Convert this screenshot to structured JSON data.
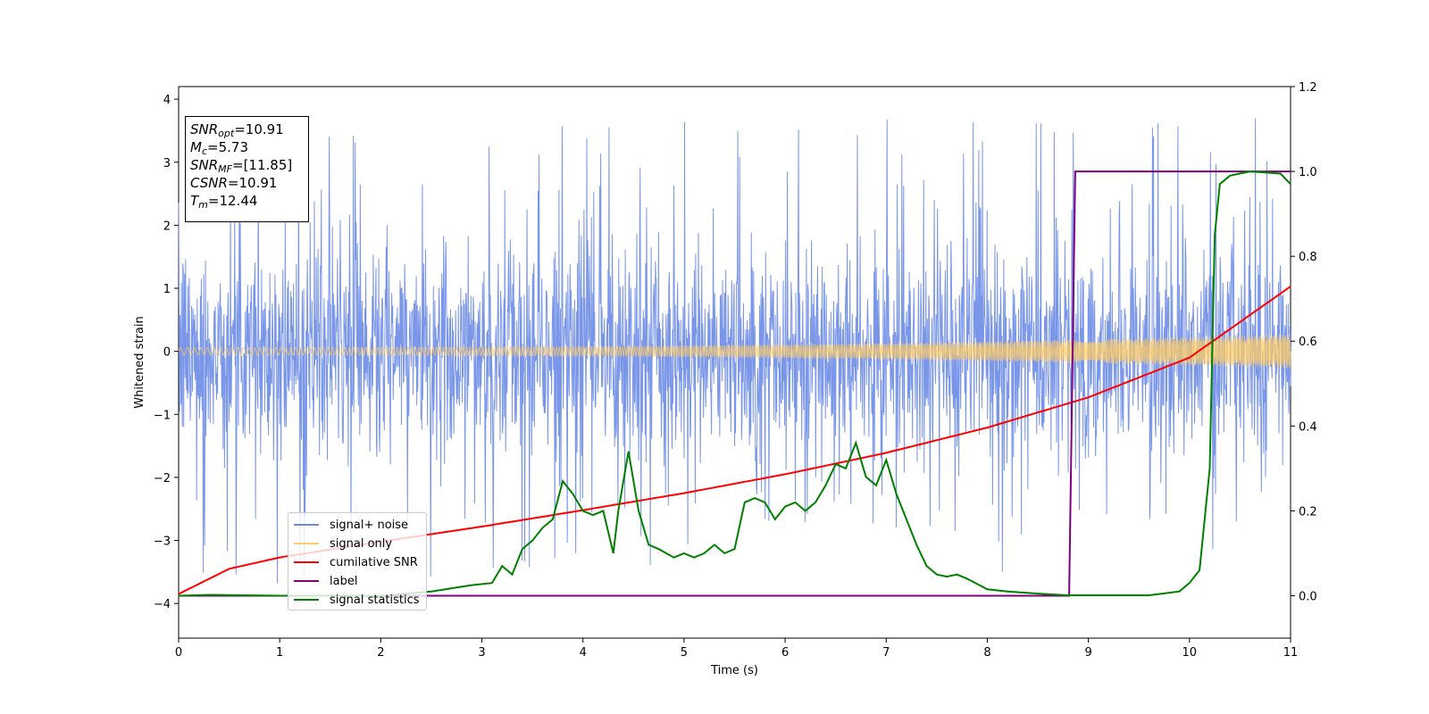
{
  "chart_data": {
    "type": "line",
    "xlabel": "Time (s)",
    "ylabel": "Whitened strain",
    "xlim": [
      0,
      11
    ],
    "ylim": [
      -4.55,
      4.2
    ],
    "y2lim": [
      -0.1,
      1.2
    ],
    "xticks": [
      "0",
      "1",
      "2",
      "3",
      "4",
      "5",
      "6",
      "7",
      "8",
      "9",
      "10",
      "11"
    ],
    "yticks": [
      "−4",
      "−3",
      "−2",
      "−1",
      "0",
      "1",
      "2",
      "3",
      "4"
    ],
    "y2ticks": [
      "0.0",
      "0.2",
      "0.4",
      "0.6",
      "0.8",
      "1.0",
      "1.2"
    ],
    "grid": false,
    "legend_position": "lower-left",
    "info_box": [
      {
        "name": "SNR",
        "sub": "opt",
        "value": "=10.91"
      },
      {
        "name": "M",
        "sub": "c",
        "value": "=5.73"
      },
      {
        "name": "SNR",
        "sub": "MF",
        "value": "=[11.85]"
      },
      {
        "name": "CSNR",
        "sub": "",
        "value": "=10.91"
      },
      {
        "name": "T",
        "sub": "m",
        "value": "=12.44"
      }
    ],
    "series": [
      {
        "name": "signal+ noise",
        "color": "#6b8be6",
        "axis": "left",
        "description_values": {
          "envelope_min": -3.9,
          "envelope_max": 3.85
        }
      },
      {
        "name": "signal only",
        "color": "#ffcc66",
        "axis": "left",
        "amplitude_start": 0.06,
        "amplitude_end": 0.27
      },
      {
        "name": "cumilative SNR",
        "color": "#ff0000",
        "axis": "left",
        "x": [
          0,
          0.5,
          1,
          2,
          3,
          4,
          5,
          6,
          7,
          8,
          9,
          10,
          11
        ],
        "values": [
          -3.85,
          -3.45,
          -3.27,
          -3.02,
          -2.78,
          -2.52,
          -2.25,
          -1.95,
          -1.61,
          -1.21,
          -0.73,
          -0.1,
          1.03
        ]
      },
      {
        "name": "label",
        "color": "#800080",
        "axis": "right",
        "x": [
          0,
          8.81,
          8.87,
          11
        ],
        "values": [
          0,
          0,
          1,
          1
        ]
      },
      {
        "name": "signal statistics",
        "color": "#008000",
        "axis": "right",
        "x": [
          0,
          0.3,
          1,
          2,
          2.5,
          2.9,
          3.1,
          3.2,
          3.3,
          3.4,
          3.5,
          3.6,
          3.7,
          3.8,
          3.9,
          4.0,
          4.1,
          4.2,
          4.3,
          4.35,
          4.45,
          4.55,
          4.65,
          4.75,
          4.9,
          5.0,
          5.1,
          5.2,
          5.3,
          5.4,
          5.5,
          5.6,
          5.7,
          5.8,
          5.9,
          6.0,
          6.1,
          6.2,
          6.3,
          6.4,
          6.5,
          6.6,
          6.7,
          6.8,
          6.9,
          7.0,
          7.1,
          7.2,
          7.3,
          7.4,
          7.5,
          7.6,
          7.7,
          7.8,
          8.0,
          8.2,
          8.5,
          8.8,
          9.2,
          9.6,
          9.9,
          10.0,
          10.1,
          10.2,
          10.25,
          10.3,
          10.4,
          10.6,
          10.9,
          11
        ],
        "values": [
          0,
          0.002,
          0,
          0,
          0.01,
          0.025,
          0.03,
          0.07,
          0.05,
          0.11,
          0.13,
          0.16,
          0.18,
          0.27,
          0.24,
          0.2,
          0.19,
          0.2,
          0.1,
          0.2,
          0.34,
          0.2,
          0.12,
          0.11,
          0.09,
          0.1,
          0.09,
          0.1,
          0.12,
          0.1,
          0.11,
          0.22,
          0.23,
          0.22,
          0.18,
          0.21,
          0.22,
          0.2,
          0.22,
          0.26,
          0.31,
          0.3,
          0.36,
          0.28,
          0.26,
          0.32,
          0.24,
          0.18,
          0.12,
          0.07,
          0.05,
          0.045,
          0.05,
          0.04,
          0.015,
          0.01,
          0.005,
          0.001,
          0.001,
          0.001,
          0.01,
          0.03,
          0.06,
          0.3,
          0.85,
          0.97,
          0.99,
          1.0,
          0.995,
          0.97
        ]
      }
    ]
  }
}
